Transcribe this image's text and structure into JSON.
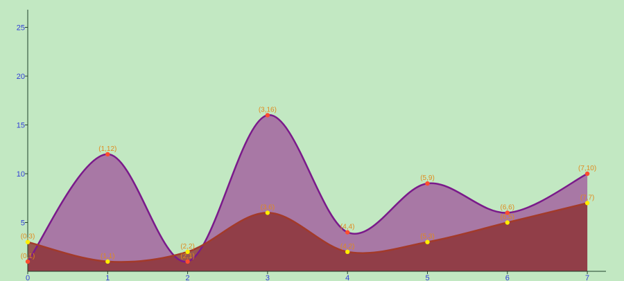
{
  "chart_data": {
    "type": "area",
    "x": [
      0,
      1,
      2,
      3,
      4,
      5,
      6,
      7
    ],
    "xticks": [
      "0",
      "1",
      "2",
      "3",
      "4",
      "5",
      "6",
      "7"
    ],
    "yticks": [
      "5",
      "10",
      "15",
      "20",
      "25"
    ],
    "ylim": [
      0,
      27
    ],
    "xlim": [
      0,
      7
    ],
    "grid": false,
    "legend": "none",
    "series": [
      {
        "values": [
          1,
          12,
          1,
          16,
          4,
          9,
          6,
          10
        ],
        "labels": [
          "(0,1)",
          "(1,12)",
          "(2,1)",
          "(3,16)",
          "(4,4)",
          "(5,9)",
          "(6,6)",
          "(7,10)"
        ],
        "fill": "#a0599c",
        "line": "#7a1a8a",
        "marker": "#ff4d2e"
      },
      {
        "values": [
          3,
          1,
          2,
          6,
          2,
          3,
          5,
          7
        ],
        "labels": [
          "(0,3)",
          "(1,1)",
          "(2,2)",
          "(3,6)",
          "(4,2)",
          "(5,3)",
          "(6,5)",
          "(7,7)"
        ],
        "fill": "#8a2e2e",
        "line": "#a33a2a",
        "marker": "#ffee00"
      }
    ],
    "colors": {
      "background": "#c2e8c2",
      "axis": "#1d3f2a",
      "tick_text": "#2f3bd8",
      "data_label": "#e08a1e"
    }
  }
}
